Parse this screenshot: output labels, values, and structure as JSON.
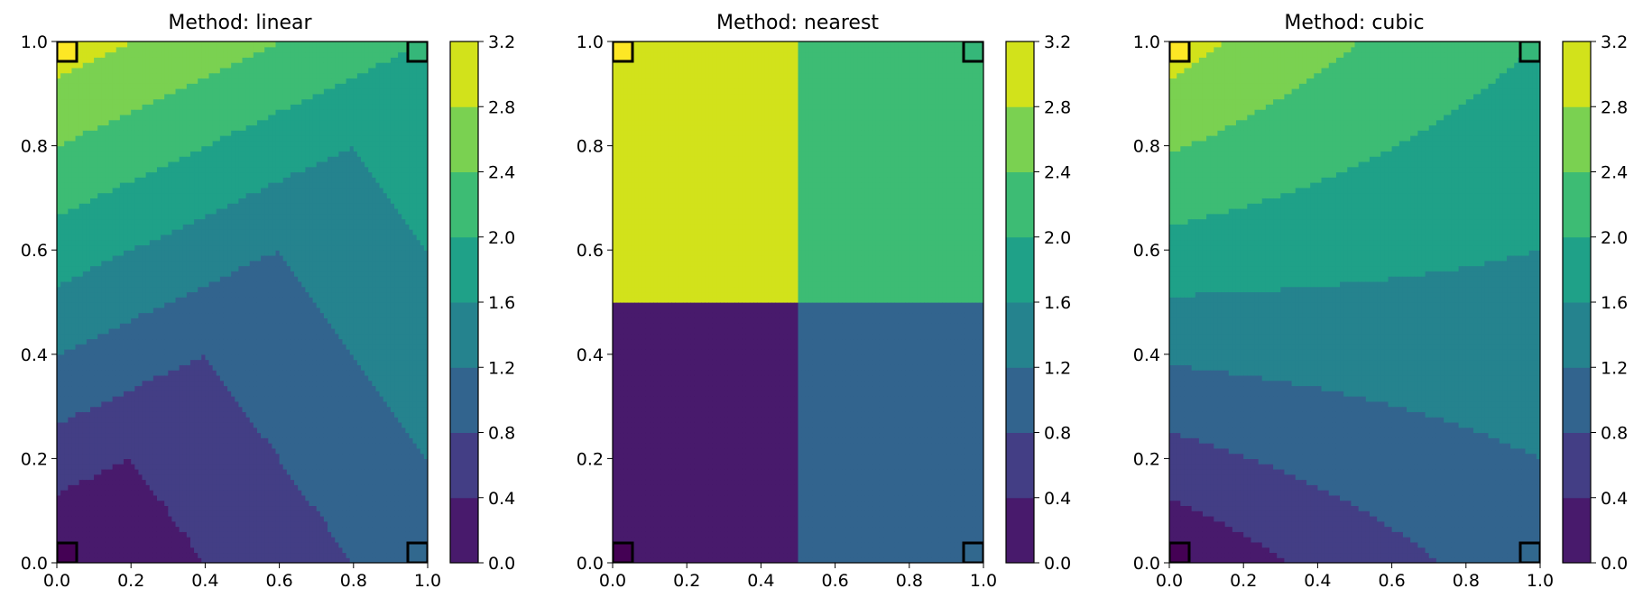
{
  "colorbar": {
    "levels": [
      0.0,
      0.4,
      0.8,
      1.2,
      1.6,
      2.0,
      2.4,
      2.8,
      3.2
    ],
    "tick_labels": [
      "0.0",
      "0.4",
      "0.8",
      "1.2",
      "1.6",
      "2.0",
      "2.4",
      "2.8",
      "3.2"
    ],
    "colors": [
      "#481a6c",
      "#433e85",
      "#32648e",
      "#25838e",
      "#1fa188",
      "#3dbc74",
      "#7ad151",
      "#d2e21b"
    ]
  },
  "marker_colors": {
    "bottom_left": "#440154",
    "bottom_right": "#31688e",
    "top_left": "#fde725",
    "top_right": "#35b779"
  },
  "chart_data": [
    {
      "type": "heatmap",
      "method": "linear",
      "title": "Method: linear",
      "xlim": [
        0.0,
        1.0
      ],
      "ylim": [
        0.0,
        1.0
      ],
      "x_tick_labels": [
        "0.0",
        "0.2",
        "0.4",
        "0.6",
        "0.8",
        "1.0"
      ],
      "y_tick_labels": [
        "0.0",
        "0.2",
        "0.4",
        "0.6",
        "0.8",
        "1.0"
      ],
      "grid_points": [
        {
          "x": 0,
          "y": 0,
          "value": 0
        },
        {
          "x": 1,
          "y": 0,
          "value": 1
        },
        {
          "x": 0,
          "y": 1,
          "value": 3
        },
        {
          "x": 1,
          "y": 1,
          "value": 2
        }
      ],
      "colorbar_range": [
        0.0,
        3.2
      ]
    },
    {
      "type": "heatmap",
      "method": "nearest",
      "title": "Method: nearest",
      "xlim": [
        0.0,
        1.0
      ],
      "ylim": [
        0.0,
        1.0
      ],
      "x_tick_labels": [
        "0.0",
        "0.2",
        "0.4",
        "0.6",
        "0.8",
        "1.0"
      ],
      "y_tick_labels": [
        "0.0",
        "0.2",
        "0.4",
        "0.6",
        "0.8",
        "1.0"
      ],
      "grid_points": [
        {
          "x": 0,
          "y": 0,
          "value": 0
        },
        {
          "x": 1,
          "y": 0,
          "value": 1
        },
        {
          "x": 0,
          "y": 1,
          "value": 3
        },
        {
          "x": 1,
          "y": 1,
          "value": 2
        }
      ],
      "colorbar_range": [
        0.0,
        3.2
      ]
    },
    {
      "type": "heatmap",
      "method": "cubic",
      "title": "Method: cubic",
      "xlim": [
        0.0,
        1.0
      ],
      "ylim": [
        0.0,
        1.0
      ],
      "x_tick_labels": [
        "0.0",
        "0.2",
        "0.4",
        "0.6",
        "0.8",
        "1.0"
      ],
      "y_tick_labels": [
        "0.0",
        "0.2",
        "0.4",
        "0.6",
        "0.8",
        "1.0"
      ],
      "grid_points": [
        {
          "x": 0,
          "y": 0,
          "value": 0
        },
        {
          "x": 1,
          "y": 0,
          "value": 1
        },
        {
          "x": 0,
          "y": 1,
          "value": 3
        },
        {
          "x": 1,
          "y": 1,
          "value": 2
        }
      ],
      "colorbar_range": [
        0.0,
        3.2
      ]
    }
  ]
}
